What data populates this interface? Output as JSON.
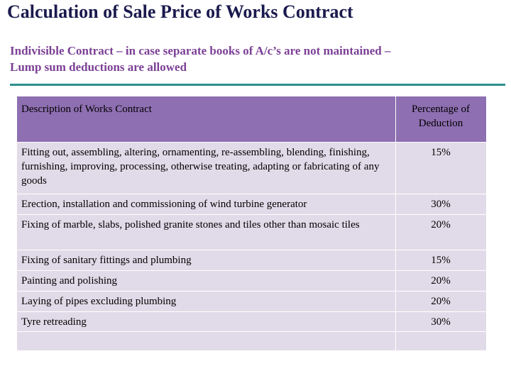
{
  "title": "Calculation of Sale Price of Works Contract",
  "subtitle": {
    "line1": "Indivisible Contract – in case separate books of A/c’s are not maintained –",
    "line2": "Lump sum deductions are allowed"
  },
  "table": {
    "headers": {
      "description": "Description of Works Contract",
      "percentage_line1": "Percentage of",
      "percentage_line2": "Deduction"
    },
    "rows": [
      {
        "description": "Fitting out, assembling, altering, ornamenting, re-assembling, blending, finishing, furnishing, improving, processing, otherwise treating, adapting or fabricating of any goods",
        "percentage": "15%"
      },
      {
        "description": "Erection, installation and commissioning of wind turbine generator",
        "percentage": "30%"
      },
      {
        "description": "Fixing of marble, slabs, polished granite stones and tiles other than mosaic tiles",
        "percentage": "20%"
      },
      {
        "description": "Fixing of sanitary fittings and plumbing",
        "percentage": "15%"
      },
      {
        "description": "Painting and polishing",
        "percentage": "20%"
      },
      {
        "description": "Laying of pipes excluding plumbing",
        "percentage": "20%"
      },
      {
        "description": "Tyre retreading",
        "percentage": "30%"
      }
    ]
  },
  "colors": {
    "title": "#1a1a4e",
    "subtitle": "#7b3f95",
    "rule": "#2a8f8f",
    "header_bg": "#8e6fb1",
    "row_bg": "#e1dbe9"
  }
}
